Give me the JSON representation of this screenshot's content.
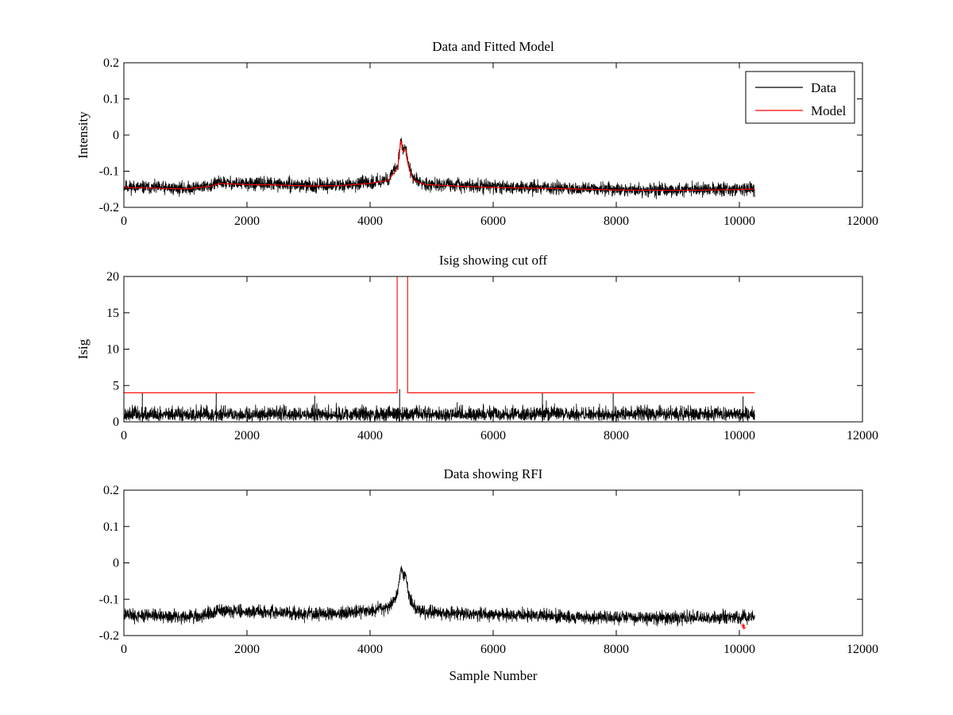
{
  "figure": {
    "background": "#ffffff",
    "colors": {
      "data": "#000000",
      "model": "#ff0000",
      "axes": "#000000"
    }
  },
  "chart_data": [
    {
      "type": "line",
      "title": "Data and Fitted Model",
      "xlabel": "",
      "ylabel": "Intensity",
      "xlim": [
        0,
        12000
      ],
      "ylim": [
        -0.2,
        0.2
      ],
      "xticks": [
        0,
        2000,
        4000,
        6000,
        8000,
        10000,
        12000
      ],
      "xtick_labels": [
        "0",
        "2000",
        "4000",
        "6000",
        "8000",
        "10000",
        "12000"
      ],
      "yticks": [
        -0.2,
        -0.1,
        0,
        0.1,
        0.2
      ],
      "ytick_labels": [
        "-0.2",
        "-0.1",
        "0",
        "0.1",
        "0.2"
      ],
      "grid": false,
      "legend": {
        "placement": "top-right",
        "entries": [
          "Data",
          "Model"
        ]
      },
      "series": [
        {
          "name": "Data",
          "color": "#000000",
          "kind": "noisy",
          "noise": 0.009,
          "seed": 11,
          "x": [
            0,
            500,
            1000,
            1400,
            1550,
            1700,
            2000,
            2500,
            3000,
            3500,
            4000,
            4300,
            4450,
            4500,
            4540,
            4580,
            4620,
            4700,
            4900,
            5500,
            6000,
            7000,
            8000,
            9000,
            10000,
            10250
          ],
          "y": [
            -0.143,
            -0.146,
            -0.148,
            -0.14,
            -0.131,
            -0.133,
            -0.135,
            -0.136,
            -0.14,
            -0.139,
            -0.132,
            -0.122,
            -0.085,
            -0.01,
            -0.04,
            -0.035,
            -0.08,
            -0.122,
            -0.135,
            -0.14,
            -0.143,
            -0.146,
            -0.151,
            -0.152,
            -0.15,
            -0.148
          ]
        },
        {
          "name": "Model",
          "color": "#ff0000",
          "kind": "smooth",
          "x": [
            0,
            500,
            1000,
            1400,
            1550,
            1700,
            2000,
            2500,
            3000,
            3500,
            4000,
            4300,
            4450,
            4500,
            4540,
            4580,
            4620,
            4700,
            4900,
            5500,
            6000,
            7000,
            8000,
            9000,
            10000,
            10250
          ],
          "y": [
            -0.145,
            -0.147,
            -0.149,
            -0.142,
            -0.134,
            -0.135,
            -0.137,
            -0.138,
            -0.141,
            -0.14,
            -0.134,
            -0.125,
            -0.09,
            -0.015,
            -0.045,
            -0.04,
            -0.085,
            -0.125,
            -0.137,
            -0.142,
            -0.145,
            -0.148,
            -0.152,
            -0.153,
            -0.151,
            -0.149
          ]
        }
      ]
    },
    {
      "type": "line",
      "title": "Isig showing cut off",
      "xlabel": "",
      "ylabel": "Isig",
      "xlim": [
        0,
        12000
      ],
      "ylim": [
        0,
        20
      ],
      "xticks": [
        0,
        2000,
        4000,
        6000,
        8000,
        10000,
        12000
      ],
      "xtick_labels": [
        "0",
        "2000",
        "4000",
        "6000",
        "8000",
        "10000",
        "12000"
      ],
      "yticks": [
        0,
        5,
        10,
        15,
        20
      ],
      "ytick_labels": [
        "0",
        "5",
        "10",
        "15",
        "20"
      ],
      "grid": false,
      "series": [
        {
          "name": "Isig",
          "color": "#000000",
          "kind": "abs-noise",
          "range": [
            0,
            10250
          ],
          "base": 0.9,
          "noise": 1.1,
          "spikes": [
            [
              300,
              4
            ],
            [
              1500,
              4
            ],
            [
              3100,
              3.6
            ],
            [
              4480,
              4.5
            ],
            [
              6800,
              4
            ],
            [
              7950,
              4
            ],
            [
              10060,
              3.5
            ]
          ],
          "seed": 23
        },
        {
          "name": "Cut off",
          "color": "#ff0000",
          "kind": "step",
          "x": [
            0,
            4440,
            4440,
            4610,
            4610,
            10250
          ],
          "y": [
            4,
            4,
            20,
            20,
            4,
            4
          ]
        }
      ]
    },
    {
      "type": "line",
      "title": "Data showing RFI",
      "xlabel": "Sample Number",
      "ylabel": "",
      "xlim": [
        0,
        12000
      ],
      "ylim": [
        -0.2,
        0.2
      ],
      "xticks": [
        0,
        2000,
        4000,
        6000,
        8000,
        10000,
        12000
      ],
      "xtick_labels": [
        "0",
        "2000",
        "4000",
        "6000",
        "8000",
        "10000",
        "12000"
      ],
      "yticks": [
        -0.2,
        -0.1,
        0,
        0.1,
        0.2
      ],
      "ytick_labels": [
        "-0.2",
        "-0.1",
        "0",
        "0.1",
        "0.2"
      ],
      "grid": false,
      "series": [
        {
          "name": "Data",
          "color": "#000000",
          "kind": "noisy",
          "noise": 0.009,
          "seed": 11,
          "x": [
            0,
            500,
            1000,
            1400,
            1550,
            1700,
            2000,
            2500,
            3000,
            3500,
            4000,
            4300,
            4450,
            4500,
            4540,
            4580,
            4620,
            4700,
            4900,
            5500,
            6000,
            7000,
            8000,
            9000,
            10000,
            10250
          ],
          "y": [
            -0.143,
            -0.146,
            -0.148,
            -0.14,
            -0.131,
            -0.133,
            -0.135,
            -0.136,
            -0.14,
            -0.139,
            -0.132,
            -0.122,
            -0.085,
            -0.01,
            -0.04,
            -0.035,
            -0.08,
            -0.122,
            -0.135,
            -0.14,
            -0.143,
            -0.146,
            -0.151,
            -0.152,
            -0.15,
            -0.148
          ]
        },
        {
          "name": "RFI",
          "color": "#ff0000",
          "kind": "markers",
          "x": [
            10060,
            10075
          ],
          "y": [
            -0.172,
            -0.178
          ]
        }
      ]
    }
  ]
}
